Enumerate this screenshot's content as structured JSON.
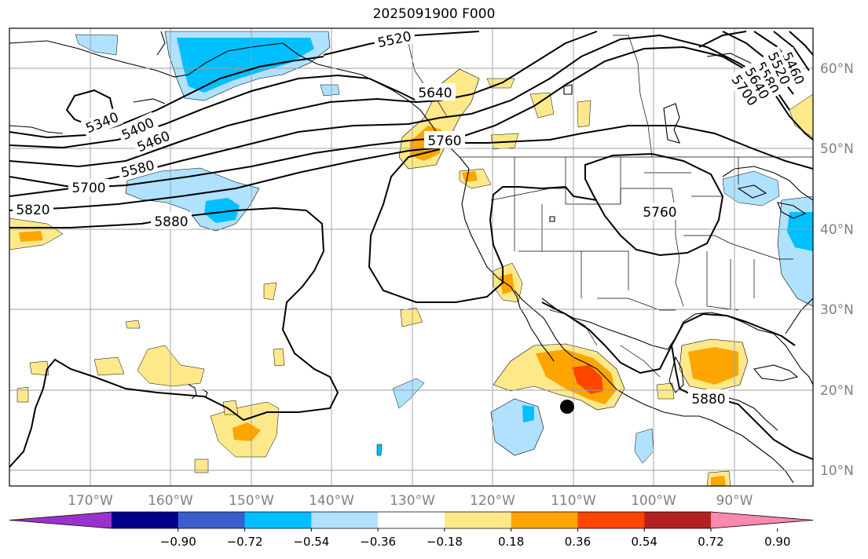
{
  "title": "2025091900 F000",
  "longitude_labels": [
    "170°W",
    "160°W",
    "150°W",
    "140°W",
    "130°W",
    "120°W",
    "110°W",
    "100°W",
    "90°W"
  ],
  "latitude_labels": [
    "60°N",
    "50°N",
    "40°N",
    "30°N",
    "20°N",
    "10°N"
  ],
  "height_contour_labels": [
    {
      "text": "5520"
    },
    {
      "text": "5340"
    },
    {
      "text": "5400"
    },
    {
      "text": "5460"
    },
    {
      "text": "5580"
    },
    {
      "text": "5640"
    },
    {
      "text": "5700"
    },
    {
      "text": "5760"
    },
    {
      "text": "5820"
    },
    {
      "text": "5880"
    },
    {
      "text": "5760"
    },
    {
      "text": "5880"
    },
    {
      "text": "5460"
    },
    {
      "text": "5520"
    },
    {
      "text": "5580"
    },
    {
      "text": "5640"
    },
    {
      "text": "5700"
    }
  ],
  "colorbar": {
    "ticks": [
      "−0.90",
      "−0.72",
      "−0.54",
      "−0.36",
      "−0.18",
      "0.18",
      "0.36",
      "0.54",
      "0.72",
      "0.90"
    ],
    "colors": [
      "#9932cc",
      "#00008b",
      "#3a5fcd",
      "#00bfff",
      "#b0e2ff",
      "#ffffff",
      "#fee98a",
      "#ffa500",
      "#ff4500",
      "#b22222",
      "#ff88b0"
    ]
  },
  "colors": {
    "map_border": "#000000",
    "grid": "#9e9e9e",
    "axis_label": "#808080"
  }
}
